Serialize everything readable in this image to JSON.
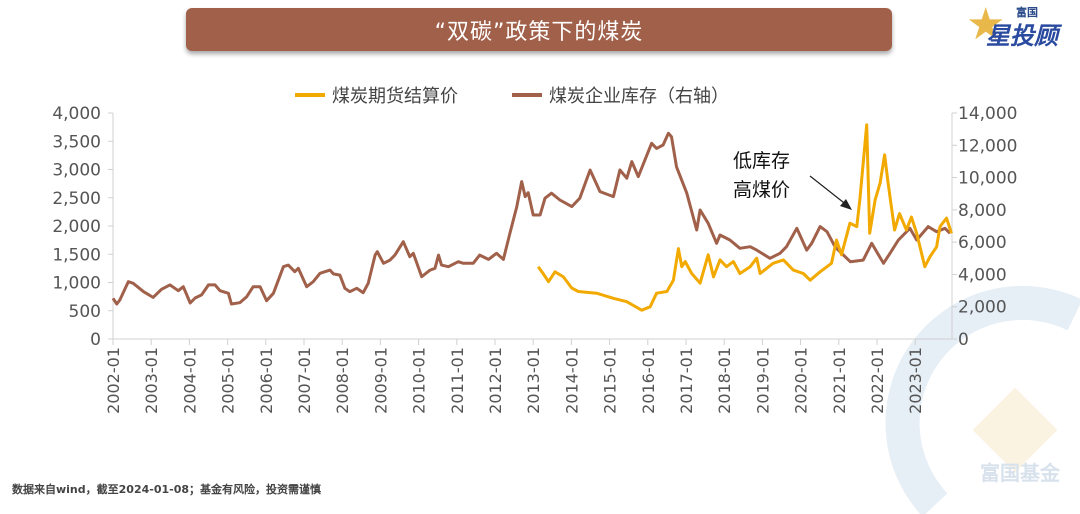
{
  "header": {
    "title": "“双碳”政策下的煤炭"
  },
  "logo": {
    "top_text": "富国",
    "main_text": "星投顾"
  },
  "watermark": {
    "text": "富国基金"
  },
  "footer": {
    "source": "数据来自wind，截至2024-01-08；基金有风险，投资需谨慎"
  },
  "colors": {
    "price": "#F2A900",
    "inventory": "#A0604A",
    "banner": "#A0604A"
  },
  "chart_data": {
    "type": "line",
    "title": "“双碳”政策下的煤炭",
    "legend_position": "top-center",
    "grid": false,
    "x_tick_labels": [
      "2002-01",
      "2003-01",
      "2004-01",
      "2005-01",
      "2006-01",
      "2007-01",
      "2008-01",
      "2009-01",
      "2010-01",
      "2011-01",
      "2012-01",
      "2013-01",
      "2014-01",
      "2015-01",
      "2016-01",
      "2017-01",
      "2018-01",
      "2019-01",
      "2020-01",
      "2021-01",
      "2022-01",
      "2023-01"
    ],
    "x_range": [
      2002.0,
      2024.05
    ],
    "left_axis": {
      "range": [
        0,
        4000
      ],
      "ticks": [
        "0",
        "500",
        "1,000",
        "1,500",
        "2,000",
        "2,500",
        "3,000",
        "3,500",
        "4,000"
      ]
    },
    "right_axis": {
      "range": [
        0,
        14000
      ],
      "ticks": [
        "0",
        "2,000",
        "4,000",
        "6,000",
        "8,000",
        "10,000",
        "12,000",
        "14,000"
      ]
    },
    "annotation": {
      "line1": "低库存",
      "line2": "高煤价"
    },
    "series": [
      {
        "name": "煤炭期货结算价",
        "axis": "left",
        "color": "#F2A900",
        "points": [
          [
            2013.13,
            1280
          ],
          [
            2013.26,
            1160
          ],
          [
            2013.4,
            1015
          ],
          [
            2013.57,
            1190
          ],
          [
            2013.79,
            1100
          ],
          [
            2014.01,
            900
          ],
          [
            2014.18,
            840
          ],
          [
            2014.66,
            810
          ],
          [
            2015.1,
            720
          ],
          [
            2015.45,
            660
          ],
          [
            2015.84,
            510
          ],
          [
            2016.06,
            570
          ],
          [
            2016.23,
            810
          ],
          [
            2016.5,
            840
          ],
          [
            2016.67,
            1040
          ],
          [
            2016.8,
            1600
          ],
          [
            2016.89,
            1280
          ],
          [
            2016.98,
            1370
          ],
          [
            2017.15,
            1160
          ],
          [
            2017.37,
            990
          ],
          [
            2017.58,
            1490
          ],
          [
            2017.72,
            1100
          ],
          [
            2017.89,
            1400
          ],
          [
            2018.06,
            1280
          ],
          [
            2018.24,
            1370
          ],
          [
            2018.41,
            1160
          ],
          [
            2018.68,
            1280
          ],
          [
            2018.85,
            1430
          ],
          [
            2018.94,
            1160
          ],
          [
            2019.28,
            1340
          ],
          [
            2019.55,
            1400
          ],
          [
            2019.81,
            1220
          ],
          [
            2020.07,
            1160
          ],
          [
            2020.25,
            1040
          ],
          [
            2020.51,
            1190
          ],
          [
            2020.81,
            1340
          ],
          [
            2020.94,
            1750
          ],
          [
            2021.07,
            1490
          ],
          [
            2021.29,
            2050
          ],
          [
            2021.47,
            1990
          ],
          [
            2021.55,
            2460
          ],
          [
            2021.73,
            3790
          ],
          [
            2021.81,
            1870
          ],
          [
            2021.95,
            2460
          ],
          [
            2022.08,
            2760
          ],
          [
            2022.2,
            3260
          ],
          [
            2022.29,
            2760
          ],
          [
            2022.46,
            1930
          ],
          [
            2022.59,
            2220
          ],
          [
            2022.77,
            1930
          ],
          [
            2022.9,
            2160
          ],
          [
            2023.04,
            1870
          ],
          [
            2023.25,
            1280
          ],
          [
            2023.39,
            1460
          ],
          [
            2023.56,
            1630
          ],
          [
            2023.65,
            1990
          ],
          [
            2023.82,
            2140
          ],
          [
            2023.95,
            1870
          ]
        ]
      },
      {
        "name": "煤炭企业库存（右轴）",
        "axis": "right",
        "color": "#A0604A",
        "points": [
          [
            2002.0,
            2520
          ],
          [
            2002.1,
            2170
          ],
          [
            2002.18,
            2420
          ],
          [
            2002.4,
            3550
          ],
          [
            2002.53,
            3450
          ],
          [
            2002.8,
            2930
          ],
          [
            2003.05,
            2580
          ],
          [
            2003.27,
            3080
          ],
          [
            2003.49,
            3350
          ],
          [
            2003.71,
            2990
          ],
          [
            2003.84,
            3240
          ],
          [
            2004.02,
            2230
          ],
          [
            2004.15,
            2540
          ],
          [
            2004.32,
            2730
          ],
          [
            2004.5,
            3350
          ],
          [
            2004.67,
            3350
          ],
          [
            2004.8,
            2990
          ],
          [
            2005.02,
            2830
          ],
          [
            2005.1,
            2170
          ],
          [
            2005.32,
            2250
          ],
          [
            2005.5,
            2620
          ],
          [
            2005.67,
            3240
          ],
          [
            2005.85,
            3240
          ],
          [
            2006.02,
            2370
          ],
          [
            2006.2,
            2830
          ],
          [
            2006.46,
            4480
          ],
          [
            2006.59,
            4580
          ],
          [
            2006.76,
            4170
          ],
          [
            2006.85,
            4380
          ],
          [
            2007.07,
            3240
          ],
          [
            2007.24,
            3550
          ],
          [
            2007.42,
            4070
          ],
          [
            2007.68,
            4270
          ],
          [
            2007.77,
            4030
          ],
          [
            2007.94,
            3960
          ],
          [
            2008.07,
            3140
          ],
          [
            2008.2,
            2930
          ],
          [
            2008.38,
            3140
          ],
          [
            2008.55,
            2870
          ],
          [
            2008.68,
            3450
          ],
          [
            2008.86,
            5200
          ],
          [
            2008.92,
            5410
          ],
          [
            2009.08,
            4690
          ],
          [
            2009.25,
            4890
          ],
          [
            2009.38,
            5200
          ],
          [
            2009.6,
            6030
          ],
          [
            2009.77,
            5100
          ],
          [
            2009.86,
            5310
          ],
          [
            2010.08,
            3860
          ],
          [
            2010.3,
            4270
          ],
          [
            2010.43,
            4380
          ],
          [
            2010.52,
            5200
          ],
          [
            2010.6,
            4580
          ],
          [
            2010.78,
            4480
          ],
          [
            2011.04,
            4790
          ],
          [
            2011.17,
            4690
          ],
          [
            2011.43,
            4690
          ],
          [
            2011.6,
            5200
          ],
          [
            2011.83,
            4930
          ],
          [
            2012.04,
            5310
          ],
          [
            2012.22,
            4930
          ],
          [
            2012.39,
            6550
          ],
          [
            2012.57,
            8200
          ],
          [
            2012.7,
            9750
          ],
          [
            2012.79,
            8820
          ],
          [
            2012.87,
            9060
          ],
          [
            2013.0,
            7680
          ],
          [
            2013.18,
            7680
          ],
          [
            2013.31,
            8720
          ],
          [
            2013.48,
            9030
          ],
          [
            2013.7,
            8610
          ],
          [
            2014.01,
            8200
          ],
          [
            2014.22,
            8720
          ],
          [
            2014.49,
            10470
          ],
          [
            2014.75,
            9130
          ],
          [
            2015.1,
            8820
          ],
          [
            2015.27,
            10470
          ],
          [
            2015.45,
            9960
          ],
          [
            2015.58,
            10990
          ],
          [
            2015.75,
            10060
          ],
          [
            2016.1,
            12120
          ],
          [
            2016.23,
            11810
          ],
          [
            2016.4,
            12020
          ],
          [
            2016.54,
            12740
          ],
          [
            2016.62,
            12530
          ],
          [
            2016.75,
            10670
          ],
          [
            2017.02,
            9030
          ],
          [
            2017.28,
            6750
          ],
          [
            2017.37,
            7990
          ],
          [
            2017.58,
            7170
          ],
          [
            2017.8,
            5930
          ],
          [
            2017.89,
            6440
          ],
          [
            2018.15,
            6130
          ],
          [
            2018.41,
            5620
          ],
          [
            2018.68,
            5720
          ],
          [
            2018.85,
            5510
          ],
          [
            2019.2,
            5000
          ],
          [
            2019.46,
            5310
          ],
          [
            2019.63,
            5720
          ],
          [
            2019.9,
            6860
          ],
          [
            2020.16,
            5510
          ],
          [
            2020.29,
            5930
          ],
          [
            2020.51,
            6960
          ],
          [
            2020.69,
            6650
          ],
          [
            2020.9,
            5720
          ],
          [
            2021.03,
            5410
          ],
          [
            2021.3,
            4790
          ],
          [
            2021.64,
            4890
          ],
          [
            2021.86,
            5930
          ],
          [
            2022.17,
            4690
          ],
          [
            2022.34,
            5310
          ],
          [
            2022.56,
            6130
          ],
          [
            2022.86,
            6860
          ],
          [
            2023.04,
            6130
          ],
          [
            2023.34,
            6960
          ],
          [
            2023.56,
            6650
          ],
          [
            2023.78,
            6860
          ],
          [
            2023.91,
            6550
          ]
        ]
      }
    ]
  }
}
